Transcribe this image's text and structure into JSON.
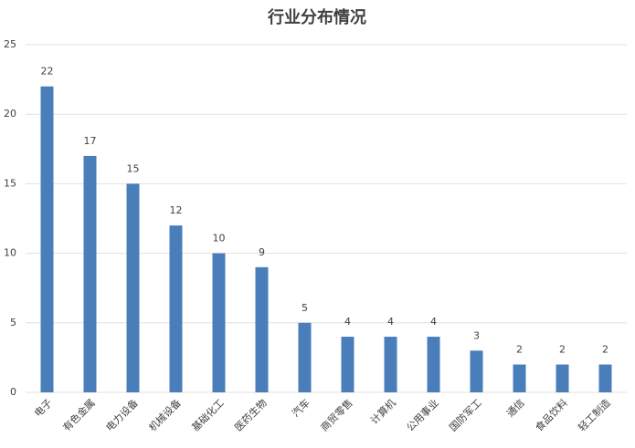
{
  "chart_data": {
    "type": "bar",
    "title": "行业分布情况",
    "categories": [
      "电子",
      "有色金属",
      "电力设备",
      "机械设备",
      "基础化工",
      "医药生物",
      "汽车",
      "商贸零售",
      "计算机",
      "公用事业",
      "国防军工",
      "通信",
      "食品饮料",
      "轻工制造"
    ],
    "values": [
      22,
      17,
      15,
      12,
      10,
      9,
      5,
      4,
      4,
      4,
      3,
      2,
      2,
      2
    ],
    "color": "#4a7ebb",
    "ylim": [
      0,
      25
    ],
    "yticks": [
      0,
      5,
      10,
      15,
      20,
      25
    ],
    "grid": true
  }
}
